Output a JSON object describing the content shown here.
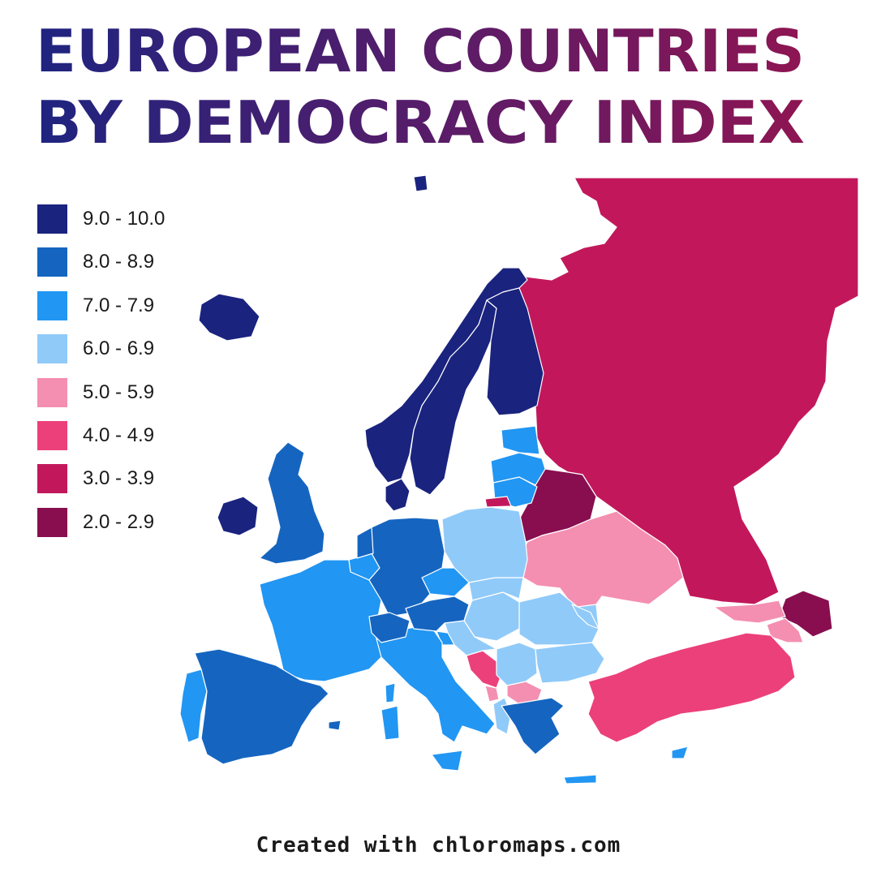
{
  "title": {
    "line1": "EUROPEAN COUNTRIES",
    "line2": "BY DEMOCRACY INDEX",
    "gradient_start": "#1e2480",
    "gradient_end": "#8e1553"
  },
  "legend": [
    {
      "label": "9.0 - 10.0",
      "color": "#1a237e"
    },
    {
      "label": "8.0 - 8.9",
      "color": "#1565c0"
    },
    {
      "label": "7.0 - 7.9",
      "color": "#2196f3"
    },
    {
      "label": "6.0 - 6.9",
      "color": "#90caf9"
    },
    {
      "label": "5.0 - 5.9",
      "color": "#f48fb1"
    },
    {
      "label": "4.0 - 4.9",
      "color": "#ec407a"
    },
    {
      "label": "3.0 - 3.9",
      "color": "#c2185b"
    },
    {
      "label": "2.0 - 2.9",
      "color": "#880e4f"
    }
  ],
  "map": {
    "regions": [
      {
        "name": "russia",
        "class": 6
      },
      {
        "name": "belarus",
        "class": 7
      },
      {
        "name": "azerbaijan",
        "class": 7
      },
      {
        "name": "ukraine",
        "class": 4
      },
      {
        "name": "georgia",
        "class": 4
      },
      {
        "name": "armenia",
        "class": 4
      },
      {
        "name": "turkey",
        "class": 5
      },
      {
        "name": "bosnia",
        "class": 5
      },
      {
        "name": "north-macedonia",
        "class": 4
      },
      {
        "name": "montenegro",
        "class": 4
      },
      {
        "name": "albania",
        "class": 3
      },
      {
        "name": "serbia",
        "class": 3
      },
      {
        "name": "romania",
        "class": 3
      },
      {
        "name": "bulgaria",
        "class": 3
      },
      {
        "name": "hungary",
        "class": 3
      },
      {
        "name": "croatia",
        "class": 3
      },
      {
        "name": "slovakia",
        "class": 3
      },
      {
        "name": "poland",
        "class": 3
      },
      {
        "name": "moldova",
        "class": 3
      },
      {
        "name": "czechia",
        "class": 2
      },
      {
        "name": "slovenia",
        "class": 2
      },
      {
        "name": "italy",
        "class": 2
      },
      {
        "name": "sicily",
        "class": 2
      },
      {
        "name": "sardinia",
        "class": 2
      },
      {
        "name": "corsica",
        "class": 2
      },
      {
        "name": "belgium",
        "class": 2
      },
      {
        "name": "france",
        "class": 2
      },
      {
        "name": "portugal",
        "class": 2
      },
      {
        "name": "lithuania",
        "class": 2
      },
      {
        "name": "latvia",
        "class": 2
      },
      {
        "name": "estonia",
        "class": 2
      },
      {
        "name": "cyprus",
        "class": 2
      },
      {
        "name": "crete",
        "class": 2
      },
      {
        "name": "greece",
        "class": 1
      },
      {
        "name": "spain",
        "class": 1
      },
      {
        "name": "uk",
        "class": 1
      },
      {
        "name": "germany",
        "class": 1
      },
      {
        "name": "austria",
        "class": 1
      },
      {
        "name": "switzerland",
        "class": 1
      },
      {
        "name": "netherlands",
        "class": 1
      },
      {
        "name": "balearics",
        "class": 1
      },
      {
        "name": "norway",
        "class": 0
      },
      {
        "name": "sweden",
        "class": 0
      },
      {
        "name": "finland",
        "class": 0
      },
      {
        "name": "denmark",
        "class": 0
      },
      {
        "name": "iceland",
        "class": 0
      },
      {
        "name": "ireland",
        "class": 0
      },
      {
        "name": "svalbard",
        "class": 0
      },
      {
        "name": "kaliningrad",
        "class": 6
      }
    ]
  },
  "credit": "Created with chloromaps.com"
}
